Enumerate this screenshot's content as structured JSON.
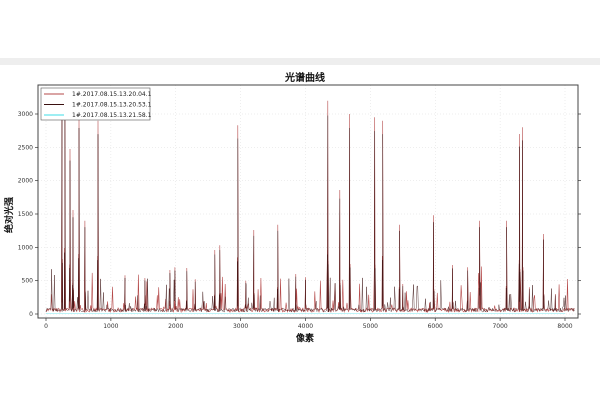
{
  "chart_data": {
    "type": "line",
    "title": "光谱曲线",
    "xlabel": "像素",
    "ylabel": "绝对光强",
    "xlim": [
      0,
      8100
    ],
    "ylim": [
      0,
      3400
    ],
    "xticks": [
      0,
      1000,
      2000,
      3000,
      4000,
      5000,
      6000,
      7000,
      8000
    ],
    "yticks": [
      0,
      500,
      1000,
      1500,
      2000,
      2500,
      3000
    ],
    "grid": true,
    "legend_position": "top-left",
    "series": [
      {
        "name": "1#.2017.08.15.13.20.04.1",
        "color": "#b54a4a"
      },
      {
        "name": "1#.2017.08.15.13.20.53.1",
        "color": "#3a1010"
      },
      {
        "name": "1#.2017.08.15.13.21.58.1",
        "color": "#7fe8ef"
      }
    ],
    "peaks": [
      [
        246,
        3300
      ],
      [
        292,
        3300
      ],
      [
        370,
        2475
      ],
      [
        416,
        1560
      ],
      [
        508,
        3000
      ],
      [
        600,
        1400
      ],
      [
        801,
        2900
      ],
      [
        1217,
        580
      ],
      [
        1525,
        540
      ],
      [
        1910,
        660
      ],
      [
        1987,
        700
      ],
      [
        2170,
        690
      ],
      [
        2300,
        520
      ],
      [
        2602,
        960
      ],
      [
        2679,
        1030
      ],
      [
        2957,
        2830
      ],
      [
        3080,
        500
      ],
      [
        3203,
        1260
      ],
      [
        3573,
        1340
      ],
      [
        3850,
        600
      ],
      [
        4000,
        550
      ],
      [
        4343,
        3200
      ],
      [
        4528,
        1860
      ],
      [
        4682,
        3000
      ],
      [
        5067,
        2950
      ],
      [
        5190,
        2900
      ],
      [
        5451,
        1340
      ],
      [
        5500,
        450
      ],
      [
        5975,
        1480
      ],
      [
        6268,
        735
      ],
      [
        6500,
        700
      ],
      [
        6683,
        1400
      ],
      [
        7100,
        1400
      ],
      [
        7300,
        2700
      ],
      [
        7346,
        2800
      ],
      [
        7450,
        400
      ],
      [
        7669,
        1200
      ],
      [
        7850,
        300
      ]
    ]
  }
}
